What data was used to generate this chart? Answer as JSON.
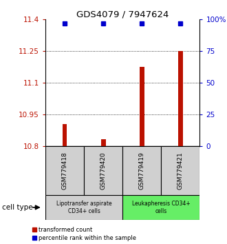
{
  "title": "GDS4079 / 7947624",
  "samples": [
    "GSM779418",
    "GSM779420",
    "GSM779419",
    "GSM779421"
  ],
  "bar_values": [
    10.905,
    10.835,
    11.175,
    11.25
  ],
  "blue_pct": [
    97,
    97,
    97,
    97
  ],
  "ylim_left": [
    10.8,
    11.4
  ],
  "ylim_right": [
    0,
    100
  ],
  "yticks_left": [
    10.8,
    10.95,
    11.1,
    11.25,
    11.4
  ],
  "ytick_labels_left": [
    "10.8",
    "10.95",
    "11.1",
    "11.25",
    "11.4"
  ],
  "yticks_right": [
    0,
    25,
    50,
    75,
    100
  ],
  "ytick_labels_right": [
    "0",
    "25",
    "50",
    "75",
    "100%"
  ],
  "bar_color": "#bb1100",
  "dot_color": "#0000cc",
  "group1_label": "Lipotransfer aspirate\nCD34+ cells",
  "group2_label": "Leukapheresis CD34+\ncells",
  "group1_color": "#d0d0d0",
  "group2_color": "#66ee66",
  "cell_type_label": "cell type",
  "legend_bar_label": "transformed count",
  "legend_dot_label": "percentile rank within the sample",
  "bar_bottom": 10.8,
  "bar_width": 0.12
}
